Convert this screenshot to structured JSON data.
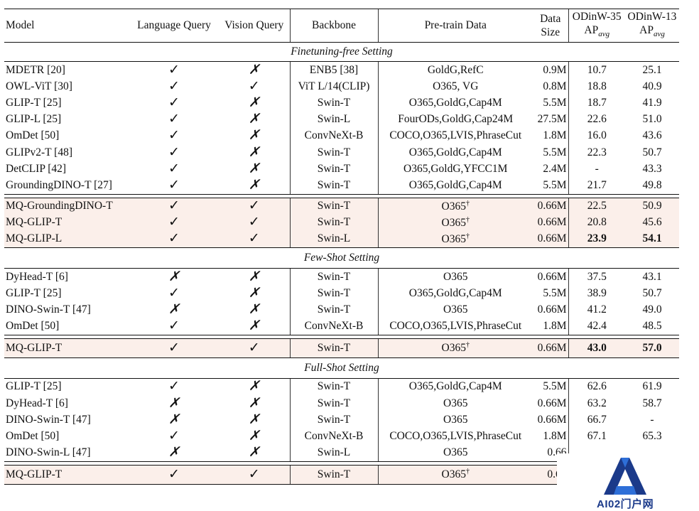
{
  "header": {
    "model": "Model",
    "language_query": "Language Query",
    "vision_query": "Vision Query",
    "backbone": "Backbone",
    "pretrain_data": "Pre-train Data",
    "data_size_line1": "Data",
    "data_size_line2": "Size",
    "odinw35_line1": "ODinW-35",
    "odinw35_line2": "AP",
    "odinw13_line1": "ODinW-13",
    "odinw13_line2": "AP",
    "ap_subscript": "avg"
  },
  "symbols": {
    "check": "✓",
    "cross": "✗",
    "dagger": "†"
  },
  "sections": {
    "finetuning_free": "Finetuning-free Setting",
    "few_shot": "Few-Shot Setting",
    "full_shot": "Full-Shot Setting"
  },
  "rows": [
    {
      "model": "MDETR [20]",
      "lq": "✓",
      "vq": "✗",
      "backbone": "ENB5 [38]",
      "data": "GoldG,RefC",
      "dagger": "",
      "size": "0.9M",
      "ap35": "10.7",
      "ap13": "25.1"
    },
    {
      "model": "OWL-ViT [30]",
      "lq": "✓",
      "vq": "✓",
      "backbone": "ViT L/14(CLIP)",
      "data": "O365, VG",
      "dagger": "",
      "size": "0.8M",
      "ap35": "18.8",
      "ap13": "40.9"
    },
    {
      "model": "GLIP-T [25]",
      "lq": "✓",
      "vq": "✗",
      "backbone": "Swin-T",
      "data": "O365,GoldG,Cap4M",
      "dagger": "",
      "size": "5.5M",
      "ap35": "18.7",
      "ap13": "41.9"
    },
    {
      "model": "GLIP-L [25]",
      "lq": "✓",
      "vq": "✗",
      "backbone": "Swin-L",
      "data": "FourODs,GoldG,Cap24M",
      "dagger": "",
      "size": "27.5M",
      "ap35": "22.6",
      "ap13": "51.0"
    },
    {
      "model": "OmDet [50]",
      "lq": "✓",
      "vq": "✗",
      "backbone": "ConvNeXt-B",
      "data": "COCO,O365,LVIS,PhraseCut",
      "dagger": "",
      "size": "1.8M",
      "ap35": "16.0",
      "ap13": "43.6"
    },
    {
      "model": "GLIPv2-T [48]",
      "lq": "✓",
      "vq": "✗",
      "backbone": "Swin-T",
      "data": "O365,GoldG,Cap4M",
      "dagger": "",
      "size": "5.5M",
      "ap35": "22.3",
      "ap13": "50.7"
    },
    {
      "model": "DetCLIP [42]",
      "lq": "✓",
      "vq": "✗",
      "backbone": "Swin-T",
      "data": "O365,GoldG,YFCC1M",
      "dagger": "",
      "size": "2.4M",
      "ap35": "-",
      "ap13": "43.3"
    },
    {
      "model": "GroundingDINO-T [27]",
      "lq": "✓",
      "vq": "✗",
      "backbone": "Swin-T",
      "data": "O365,GoldG,Cap4M",
      "dagger": "",
      "size": "5.5M",
      "ap35": "21.7",
      "ap13": "49.8"
    },
    {
      "model": "MQ-GroundingDINO-T",
      "lq": "✓",
      "vq": "✓",
      "backbone": "Swin-T",
      "data": "O365",
      "dagger": "†",
      "size": "0.66M",
      "ap35": "22.5",
      "ap13": "50.9"
    },
    {
      "model": "MQ-GLIP-T",
      "lq": "✓",
      "vq": "✓",
      "backbone": "Swin-T",
      "data": "O365",
      "dagger": "†",
      "size": "0.66M",
      "ap35": "20.8",
      "ap13": "45.6"
    },
    {
      "model": "MQ-GLIP-L",
      "lq": "✓",
      "vq": "✓",
      "backbone": "Swin-L",
      "data": "O365",
      "dagger": "†",
      "size": "0.66M",
      "ap35": "23.9",
      "ap13": "54.1"
    },
    {
      "model": "DyHead-T [6]",
      "lq": "✗",
      "vq": "✗",
      "backbone": "Swin-T",
      "data": "O365",
      "dagger": "",
      "size": "0.66M",
      "ap35": "37.5",
      "ap13": "43.1"
    },
    {
      "model": "GLIP-T [25]",
      "lq": "✓",
      "vq": "✗",
      "backbone": "Swin-T",
      "data": "O365,GoldG,Cap4M",
      "dagger": "",
      "size": "5.5M",
      "ap35": "38.9",
      "ap13": "50.7"
    },
    {
      "model": "DINO-Swin-T [47]",
      "lq": "✗",
      "vq": "✗",
      "backbone": "Swin-T",
      "data": "O365",
      "dagger": "",
      "size": "0.66M",
      "ap35": "41.2",
      "ap13": "49.0"
    },
    {
      "model": "OmDet [50]",
      "lq": "✓",
      "vq": "✗",
      "backbone": "ConvNeXt-B",
      "data": "COCO,O365,LVIS,PhraseCut",
      "dagger": "",
      "size": "1.8M",
      "ap35": "42.4",
      "ap13": "48.5"
    },
    {
      "model": "MQ-GLIP-T",
      "lq": "✓",
      "vq": "✓",
      "backbone": "Swin-T",
      "data": "O365",
      "dagger": "†",
      "size": "0.66M",
      "ap35": "43.0",
      "ap13": "57.0"
    },
    {
      "model": "GLIP-T [25]",
      "lq": "✓",
      "vq": "✗",
      "backbone": "Swin-T",
      "data": "O365,GoldG,Cap4M",
      "dagger": "",
      "size": "5.5M",
      "ap35": "62.6",
      "ap13": "61.9"
    },
    {
      "model": "DyHead-T [6]",
      "lq": "✗",
      "vq": "✗",
      "backbone": "Swin-T",
      "data": "O365",
      "dagger": "",
      "size": "0.66M",
      "ap35": "63.2",
      "ap13": "58.7"
    },
    {
      "model": "DINO-Swin-T [47]",
      "lq": "✗",
      "vq": "✗",
      "backbone": "Swin-T",
      "data": "O365",
      "dagger": "",
      "size": "0.66M",
      "ap35": "66.7",
      "ap13": "-"
    },
    {
      "model": "OmDet [50]",
      "lq": "✓",
      "vq": "✗",
      "backbone": "ConvNeXt-B",
      "data": "COCO,O365,LVIS,PhraseCut",
      "dagger": "",
      "size": "1.8M",
      "ap35": "67.1",
      "ap13": "65.3"
    },
    {
      "model": "DINO-Swin-L [47]",
      "lq": "✗",
      "vq": "✗",
      "backbone": "Swin-L",
      "data": "O365",
      "dagger": "",
      "size": "0.66",
      "ap35": "",
      "ap13": ""
    },
    {
      "model": "MQ-GLIP-T",
      "lq": "✓",
      "vq": "✓",
      "backbone": "Swin-T",
      "data": "O365",
      "dagger": "†",
      "size": "0.66",
      "ap35": "",
      "ap13": ""
    }
  ],
  "watermark": {
    "text": "AI02门户网",
    "color": "#1b3a8a",
    "accent": "#2e6fd8"
  }
}
